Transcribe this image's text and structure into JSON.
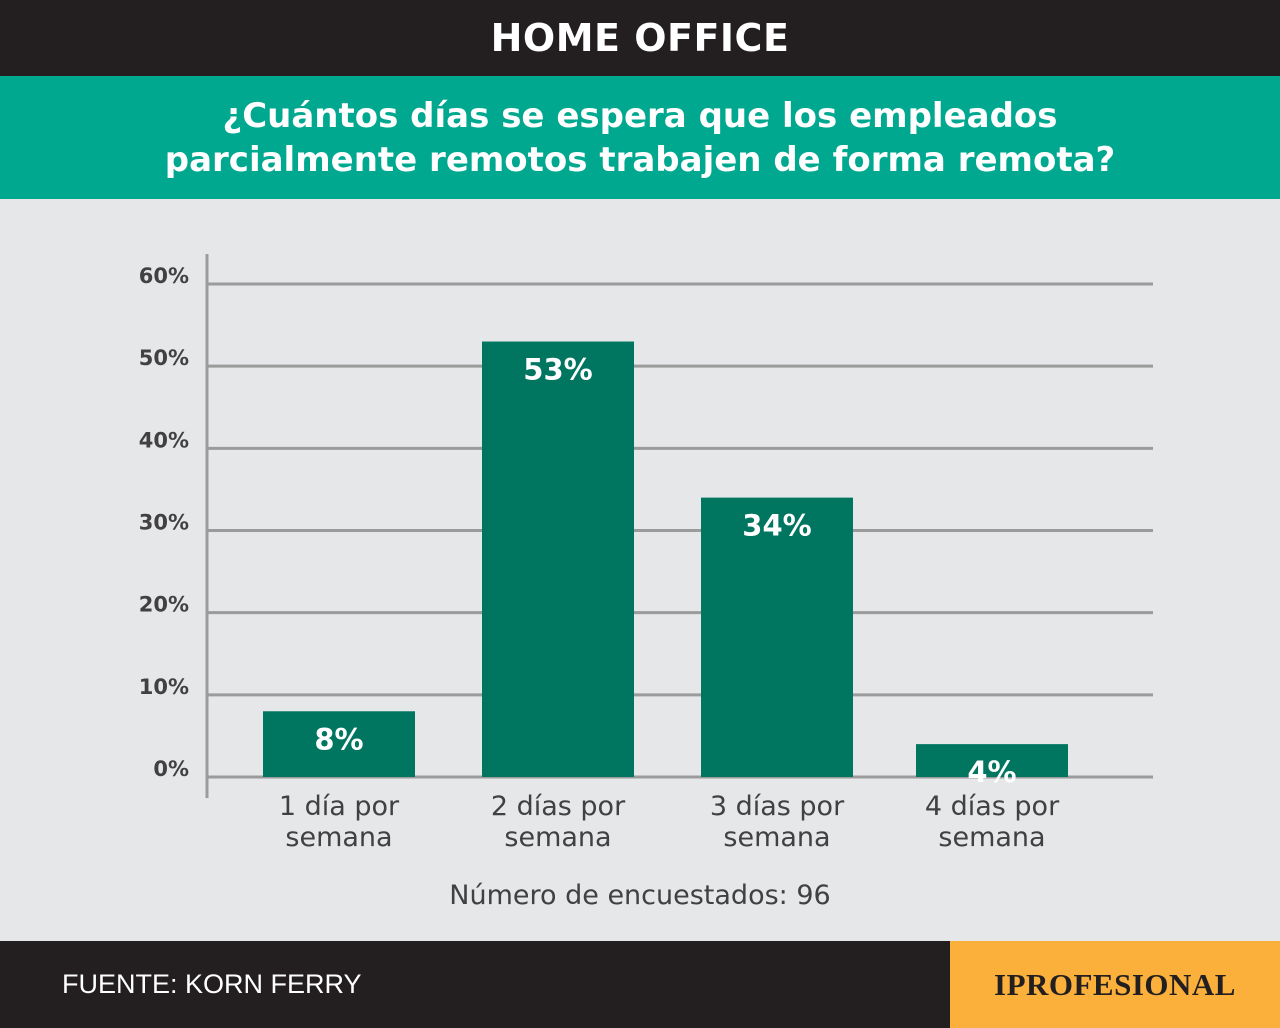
{
  "header": {
    "title": "HOME OFFICE"
  },
  "subheader": {
    "question": "¿Cuántos días se espera que los empleados parcialmente remotos trabajen de forma remota?"
  },
  "note": "Número de encuestados: 96",
  "footer": {
    "source": "FUENTE: KORN FERRY",
    "brand": "IPROFESIONAL"
  },
  "colors": {
    "top_bar": "#231f20",
    "sub_bar": "#00a88f",
    "bars": "#007560",
    "brand_bg": "#fbb03b",
    "background": "#e6e7e8"
  },
  "chart_data": {
    "type": "bar",
    "categories": [
      [
        "1 día por",
        "semana"
      ],
      [
        "2 días por",
        "semana"
      ],
      [
        "3 días por",
        "semana"
      ],
      [
        "4 días por",
        "semana"
      ]
    ],
    "values": [
      8,
      53,
      34,
      4
    ],
    "data_labels": [
      "8%",
      "53%",
      "34%",
      "4%"
    ],
    "yticks": [
      0,
      10,
      20,
      30,
      40,
      50,
      60
    ],
    "ytick_labels": [
      "0%",
      "10%",
      "20%",
      "30%",
      "40%",
      "50%",
      "60%"
    ],
    "ylim": [
      0,
      60
    ],
    "grid": true
  }
}
